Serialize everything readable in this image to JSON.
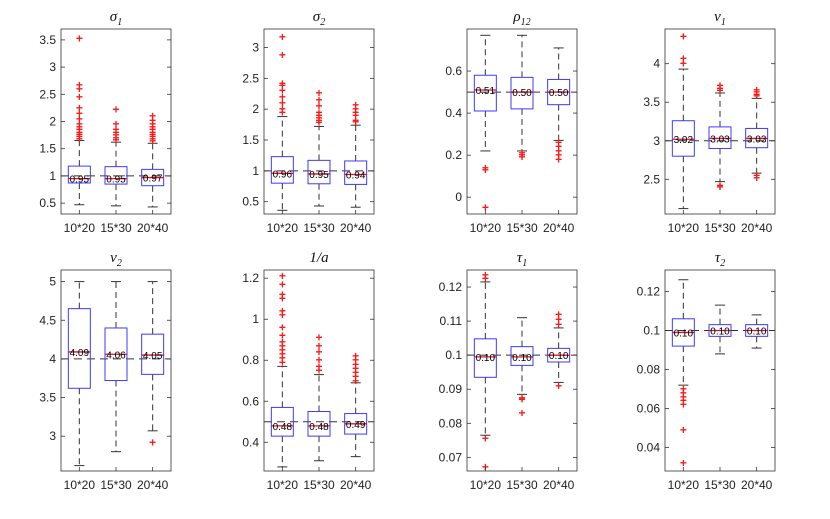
{
  "figure": {
    "outlier_symbol": "+",
    "colors": {
      "box": "#3b3bff",
      "median": "#e0102a",
      "whisker": "#333333",
      "outlier": "#ff1a1a",
      "reference": "#333333"
    }
  },
  "chart_data": [
    {
      "type": "box",
      "title_base": "σ",
      "title_sub": "1",
      "categories": [
        "10*20",
        "15*30",
        "20*40"
      ],
      "ylim": [
        0.3,
        3.7
      ],
      "yticks": [
        0.5,
        1,
        1.5,
        2,
        2.5,
        3,
        3.5
      ],
      "ytick_labels": [
        "0.5",
        "1",
        "1.5",
        "2",
        "2.5",
        "3",
        "3.5"
      ],
      "reference": 1,
      "boxes": [
        {
          "q1": 0.87,
          "median": 0.95,
          "q3": 1.18,
          "whisker_low": 0.47,
          "whisker_high": 1.65,
          "label": "0.95",
          "outliers": [
            1.68,
            1.72,
            1.76,
            1.8,
            1.85,
            1.9,
            1.95,
            2.05,
            2.15,
            2.25,
            2.45,
            2.6,
            2.67,
            3.53
          ]
        },
        {
          "q1": 0.85,
          "median": 0.95,
          "q3": 1.17,
          "whisker_low": 0.45,
          "whisker_high": 1.62,
          "label": "0.95",
          "outliers": [
            1.66,
            1.7,
            1.75,
            1.8,
            1.85,
            1.95,
            2.22
          ]
        },
        {
          "q1": 0.82,
          "median": 0.97,
          "q3": 1.12,
          "whisker_low": 0.43,
          "whisker_high": 1.6,
          "label": "0.97",
          "outliers": [
            1.64,
            1.68,
            1.72,
            1.76,
            1.8,
            1.85,
            1.9,
            1.95,
            2.02,
            2.1
          ]
        }
      ]
    },
    {
      "type": "box",
      "title_base": "σ",
      "title_sub": "2",
      "categories": [
        "10*20",
        "15*30",
        "20*40"
      ],
      "ylim": [
        0.3,
        3.3
      ],
      "yticks": [
        0.5,
        1,
        1.5,
        2,
        2.5,
        3
      ],
      "ytick_labels": [
        "0.5",
        "1",
        "1.5",
        "2",
        "2.5",
        "3"
      ],
      "reference": 1,
      "boxes": [
        {
          "q1": 0.8,
          "median": 0.96,
          "q3": 1.23,
          "whisker_low": 0.36,
          "whisker_high": 1.88,
          "label": "0.96",
          "outliers": [
            1.95,
            2.0,
            2.1,
            2.2,
            2.3,
            2.38,
            2.42,
            2.88,
            3.17
          ]
        },
        {
          "q1": 0.79,
          "median": 0.95,
          "q3": 1.17,
          "whisker_low": 0.43,
          "whisker_high": 1.72,
          "label": "0.95",
          "outliers": [
            1.78,
            1.82,
            1.86,
            1.9,
            1.95,
            2.05,
            2.15,
            2.26
          ]
        },
        {
          "q1": 0.78,
          "median": 0.94,
          "q3": 1.16,
          "whisker_low": 0.41,
          "whisker_high": 1.74,
          "label": "0.94",
          "outliers": [
            1.79,
            1.82,
            1.9,
            1.95,
            2.0,
            2.07
          ]
        }
      ]
    },
    {
      "type": "box",
      "title_base": "ρ",
      "title_sub": "12",
      "categories": [
        "10*20",
        "15*30",
        "20*40"
      ],
      "ylim": [
        -0.08,
        0.8
      ],
      "yticks": [
        0,
        0.2,
        0.4,
        0.6
      ],
      "ytick_labels": [
        "0",
        "0.2",
        "0.4",
        "0.6"
      ],
      "reference": 0.5,
      "boxes": [
        {
          "q1": 0.41,
          "median": 0.51,
          "q3": 0.58,
          "whisker_low": 0.22,
          "whisker_high": 0.77,
          "label": "0.51",
          "outliers": [
            0.14,
            0.13,
            -0.05
          ]
        },
        {
          "q1": 0.42,
          "median": 0.5,
          "q3": 0.57,
          "whisker_low": 0.22,
          "whisker_high": 0.77,
          "label": "0.50",
          "outliers": [
            0.21,
            0.2,
            0.19
          ]
        },
        {
          "q1": 0.44,
          "median": 0.5,
          "q3": 0.56,
          "whisker_low": 0.27,
          "whisker_high": 0.71,
          "label": "0.50",
          "outliers": [
            0.26,
            0.24,
            0.22,
            0.2,
            0.18
          ]
        }
      ]
    },
    {
      "type": "box",
      "title_base": "ν",
      "title_sub": "1",
      "categories": [
        "10*20",
        "15*30",
        "20*40"
      ],
      "ylim": [
        2.05,
        4.45
      ],
      "yticks": [
        2.5,
        3,
        3.5,
        4
      ],
      "ytick_labels": [
        "2.5",
        "3",
        "3.5",
        "4"
      ],
      "reference": 3,
      "boxes": [
        {
          "q1": 2.8,
          "median": 3.02,
          "q3": 3.26,
          "whisker_low": 2.12,
          "whisker_high": 3.93,
          "label": "3.02",
          "outliers": [
            4.0,
            4.07,
            4.35
          ]
        },
        {
          "q1": 2.9,
          "median": 3.03,
          "q3": 3.18,
          "whisker_low": 2.47,
          "whisker_high": 3.62,
          "label": "3.03",
          "outliers": [
            3.65,
            3.68,
            3.72,
            2.42,
            2.4
          ]
        },
        {
          "q1": 2.91,
          "median": 3.03,
          "q3": 3.16,
          "whisker_low": 2.58,
          "whisker_high": 3.55,
          "label": "3.03",
          "outliers": [
            3.58,
            3.6,
            3.63,
            3.66,
            2.55,
            2.52
          ]
        }
      ]
    },
    {
      "type": "box",
      "title_base": "ν",
      "title_sub": "2",
      "categories": [
        "10*20",
        "15*30",
        "20*40"
      ],
      "ylim": [
        2.55,
        5.15
      ],
      "yticks": [
        3,
        3.5,
        4,
        4.5,
        5
      ],
      "ytick_labels": [
        "3",
        "3.5",
        "4",
        "4.5",
        "5"
      ],
      "reference": 4,
      "boxes": [
        {
          "q1": 3.62,
          "median": 4.09,
          "q3": 4.65,
          "whisker_low": 2.62,
          "whisker_high": 5.0,
          "label": "4.09",
          "outliers": []
        },
        {
          "q1": 3.72,
          "median": 4.06,
          "q3": 4.4,
          "whisker_low": 2.8,
          "whisker_high": 5.0,
          "label": "4.06",
          "outliers": []
        },
        {
          "q1": 3.8,
          "median": 4.05,
          "q3": 4.32,
          "whisker_low": 3.07,
          "whisker_high": 5.0,
          "label": "4.05",
          "outliers": [
            2.92
          ]
        }
      ]
    },
    {
      "type": "box",
      "title_base": "1/a",
      "title_sub": "",
      "categories": [
        "10*20",
        "15*30",
        "20*40"
      ],
      "ylim": [
        0.26,
        1.24
      ],
      "yticks": [
        0.4,
        0.6,
        0.8,
        1,
        1.2
      ],
      "ytick_labels": [
        "0.4",
        "0.6",
        "0.8",
        "1",
        "1.2"
      ],
      "reference": 0.5,
      "boxes": [
        {
          "q1": 0.43,
          "median": 0.48,
          "q3": 0.57,
          "whisker_low": 0.28,
          "whisker_high": 0.77,
          "label": "0.48",
          "outliers": [
            0.79,
            0.81,
            0.83,
            0.85,
            0.87,
            0.89,
            0.92,
            0.96,
            1.02,
            1.04,
            1.1,
            1.12,
            1.17,
            1.21
          ]
        },
        {
          "q1": 0.43,
          "median": 0.48,
          "q3": 0.55,
          "whisker_low": 0.31,
          "whisker_high": 0.73,
          "label": "0.48",
          "outliers": [
            0.75,
            0.77,
            0.8,
            0.84,
            0.87,
            0.91
          ]
        },
        {
          "q1": 0.44,
          "median": 0.49,
          "q3": 0.54,
          "whisker_low": 0.33,
          "whisker_high": 0.69,
          "label": "0.49",
          "outliers": [
            0.7,
            0.72,
            0.74,
            0.76,
            0.78,
            0.8,
            0.82
          ]
        }
      ]
    },
    {
      "type": "box",
      "title_base": "τ",
      "title_sub": "1",
      "categories": [
        "10*20",
        "15*30",
        "20*40"
      ],
      "ylim": [
        0.066,
        0.125
      ],
      "yticks": [
        0.07,
        0.08,
        0.09,
        0.1,
        0.11,
        0.12
      ],
      "ytick_labels": [
        "0.07",
        "0.08",
        "0.09",
        "0.1",
        "0.11",
        "0.12"
      ],
      "reference": 0.1,
      "boxes": [
        {
          "q1": 0.0935,
          "median": 0.0995,
          "q3": 0.1048,
          "whisker_low": 0.0765,
          "whisker_high": 0.1215,
          "label": "0.10",
          "outliers": [
            0.1225,
            0.1235,
            0.0755,
            0.0672
          ]
        },
        {
          "q1": 0.097,
          "median": 0.0995,
          "q3": 0.1025,
          "whisker_low": 0.0885,
          "whisker_high": 0.111,
          "label": "0.10",
          "outliers": [
            0.0875,
            0.087,
            0.083
          ]
        },
        {
          "q1": 0.098,
          "median": 0.1,
          "q3": 0.102,
          "whisker_low": 0.092,
          "whisker_high": 0.108,
          "label": "0.10",
          "outliers": [
            0.109,
            0.1105,
            0.112,
            0.091
          ]
        }
      ]
    },
    {
      "type": "box",
      "title_base": "τ",
      "title_sub": "2",
      "categories": [
        "10*20",
        "15*30",
        "20*40"
      ],
      "ylim": [
        0.028,
        0.131
      ],
      "yticks": [
        0.04,
        0.06,
        0.08,
        0.1,
        0.12
      ],
      "ytick_labels": [
        "0.04",
        "0.06",
        "0.08",
        "0.1",
        "0.12"
      ],
      "reference": 0.1,
      "boxes": [
        {
          "q1": 0.092,
          "median": 0.099,
          "q3": 0.106,
          "whisker_low": 0.072,
          "whisker_high": 0.126,
          "label": "0.10",
          "outliers": [
            0.07,
            0.068,
            0.066,
            0.064,
            0.062,
            0.049,
            0.032
          ]
        },
        {
          "q1": 0.097,
          "median": 0.1,
          "q3": 0.103,
          "whisker_low": 0.088,
          "whisker_high": 0.113,
          "label": "0.10",
          "outliers": []
        },
        {
          "q1": 0.097,
          "median": 0.1,
          "q3": 0.103,
          "whisker_low": 0.091,
          "whisker_high": 0.108,
          "label": "0.10",
          "outliers": []
        }
      ]
    }
  ]
}
